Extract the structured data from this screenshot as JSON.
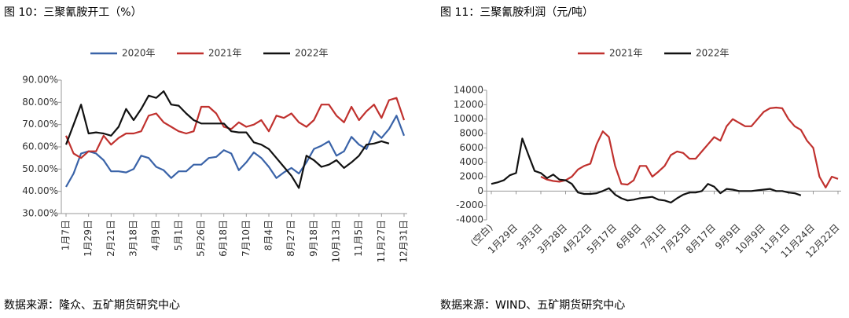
{
  "chart_data": [
    {
      "type": "line",
      "title": "图 10：三聚氰胺开工（%）",
      "source": "数据来源：隆众、五矿期货研究中心",
      "categories": [
        "1月7日",
        null,
        null,
        "1月29日",
        null,
        null,
        "2月21日",
        null,
        null,
        "3月18日",
        null,
        null,
        "4月9日",
        null,
        null,
        "5月1日",
        null,
        null,
        "5月26日",
        null,
        null,
        "6月18日",
        null,
        null,
        "7月10日",
        null,
        null,
        "8月4日",
        null,
        null,
        "8月27日",
        null,
        null,
        "9月18日",
        null,
        null,
        "10月13日",
        null,
        null,
        "11月5日",
        null,
        null,
        "11月27日",
        null,
        null,
        "12月31日"
      ],
      "series": [
        {
          "name": "2020年",
          "color": "#3a63a8",
          "values": [
            42,
            48,
            57,
            58,
            57,
            54,
            49,
            49,
            48.5,
            50,
            56,
            55,
            51,
            49.5,
            46,
            49,
            49,
            52,
            52,
            55,
            55.5,
            58.5,
            57,
            49.5,
            53,
            57.5,
            55,
            51,
            46,
            48.5,
            50.5,
            48,
            53,
            59,
            60.5,
            62.5,
            56,
            58,
            64.5,
            61,
            59,
            67,
            64,
            68,
            74,
            65
          ]
        },
        {
          "name": "2021年",
          "color": "#c0312e",
          "values": [
            65,
            57,
            55,
            58,
            58,
            65,
            61,
            64,
            66,
            66,
            67,
            74,
            75,
            71,
            69,
            67,
            66,
            67,
            78,
            78,
            75,
            69,
            68,
            71,
            69,
            70,
            72,
            67,
            74,
            73,
            75,
            71,
            69,
            72,
            79,
            79,
            74,
            71,
            78,
            72,
            76,
            79,
            73,
            81,
            82,
            72
          ]
        },
        {
          "name": "2022年",
          "color": "#111111",
          "values": [
            61,
            70,
            79,
            66,
            66.5,
            66,
            65,
            69,
            77,
            72,
            77,
            83,
            82,
            85,
            79,
            78.5,
            75,
            72,
            70.5,
            70.5,
            70.5,
            70.5,
            67,
            66.5,
            66.5,
            62,
            61,
            59,
            55,
            51,
            47,
            41.5,
            56,
            54,
            51,
            52,
            54,
            50.5,
            53,
            56,
            61,
            61.5,
            62.5,
            61.5,
            null,
            null
          ]
        }
      ],
      "ylim": [
        30,
        90
      ],
      "yticks": [
        {
          "value": 30,
          "label": "30.00%"
        },
        {
          "value": 40,
          "label": "40.00%"
        },
        {
          "value": 50,
          "label": "50.00%"
        },
        {
          "value": 60,
          "label": "60.00%"
        },
        {
          "value": 70,
          "label": "70.00%"
        },
        {
          "value": 80,
          "label": "80.00%"
        },
        {
          "value": 90,
          "label": "90.00%"
        }
      ],
      "grid": false
    },
    {
      "type": "line",
      "title": "图 11：三聚氰胺利润（元/吨）",
      "source": "数据来源：WIND、五矿期货研究中心",
      "categories": [
        "(空白)",
        null,
        null,
        null,
        "1月29日",
        null,
        null,
        null,
        "3月3日",
        null,
        null,
        null,
        "3月28日",
        null,
        null,
        null,
        "4月22日",
        null,
        null,
        null,
        "5月17日",
        null,
        null,
        null,
        "6月8日",
        null,
        null,
        null,
        "7月1日",
        null,
        null,
        null,
        "7月25日",
        null,
        null,
        null,
        "8月17日",
        null,
        null,
        null,
        "9月9日",
        null,
        null,
        null,
        "10月9日",
        null,
        null,
        null,
        "11月1日",
        null,
        null,
        null,
        "11月24日",
        null,
        null,
        null,
        "12月22日"
      ],
      "series": [
        {
          "name": "2021年",
          "color": "#c0312e",
          "values": [
            null,
            null,
            null,
            null,
            null,
            null,
            null,
            null,
            2000,
            1600,
            1400,
            1300,
            1500,
            2000,
            3000,
            3500,
            3800,
            6500,
            8300,
            7500,
            3500,
            1000,
            900,
            1500,
            3500,
            3500,
            2000,
            2700,
            3500,
            5000,
            5500,
            5300,
            4500,
            4500,
            5500,
            6500,
            7500,
            7000,
            9000,
            10000,
            9500,
            9000,
            9000,
            10000,
            11000,
            11500,
            11600,
            11500,
            10000,
            9000,
            8500,
            7000,
            6000,
            2000,
            500,
            2000,
            1700
          ]
        },
        {
          "name": "2022年",
          "color": "#111111",
          "values": [
            1000,
            1200,
            1500,
            2200,
            2500,
            7300,
            5000,
            2800,
            2500,
            1800,
            2300,
            1600,
            1500,
            1000,
            -200,
            -400,
            -400,
            -300,
            0,
            400,
            -500,
            -1000,
            -1300,
            -1200,
            -1000,
            -900,
            -800,
            -1200,
            -1300,
            -1600,
            -1000,
            -500,
            -200,
            -200,
            0,
            1000,
            600,
            -300,
            300,
            200,
            0,
            0,
            0,
            100,
            200,
            300,
            0,
            0,
            -200,
            -300,
            -600,
            null,
            null,
            null,
            null,
            null,
            null
          ]
        }
      ],
      "ylim": [
        -4000,
        14000
      ],
      "yticks": [
        -4000,
        -2000,
        0,
        2000,
        4000,
        6000,
        8000,
        10000,
        12000,
        14000
      ],
      "grid": false
    }
  ]
}
